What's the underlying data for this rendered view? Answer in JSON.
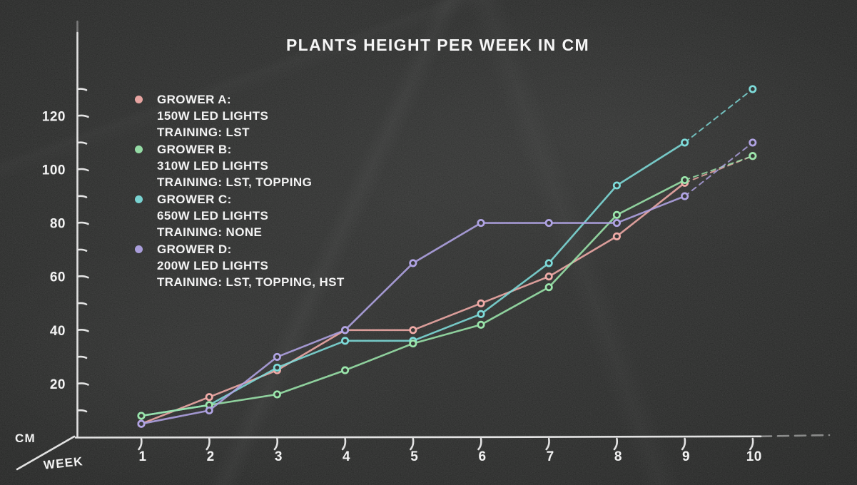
{
  "title": "PLANTS HEIGHT PER WEEK IN CM",
  "colors": {
    "background": "#1e1f1e",
    "chalk": "#f2f2f2",
    "grower_a": "#f0a29e",
    "grower_b": "#8fe3a2",
    "grower_c": "#6fd8d6",
    "grower_d": "#a89ae2"
  },
  "axes": {
    "y_unit_label": "CM",
    "x_unit_label": "WEEK"
  },
  "chart_data": {
    "type": "line",
    "title": "PLANTS HEIGHT PER WEEK IN CM",
    "xlabel": "WEEK",
    "ylabel": "CM",
    "x": [
      1,
      2,
      3,
      4,
      5,
      6,
      7,
      8,
      9,
      10
    ],
    "ylim": [
      0,
      135
    ],
    "y_ticks": [
      20,
      40,
      60,
      80,
      100,
      120
    ],
    "y_minor_ticks": [
      10,
      30,
      50,
      70,
      90,
      110,
      130
    ],
    "grid": false,
    "legend_position": "upper-left",
    "projection_segment": "weeks 9-10 drawn dashed",
    "series": [
      {
        "name": "GROWER A",
        "color": "#f0a29e",
        "legend": [
          "GROWER A:",
          "150W LED LIGHTS",
          "TRAINING: LST"
        ],
        "values": [
          5,
          15,
          25,
          40,
          40,
          50,
          60,
          75,
          95,
          105
        ]
      },
      {
        "name": "GROWER B",
        "color": "#8fe3a2",
        "legend": [
          "GROWER B:",
          "310W LED LIGHTS",
          "TRAINING: LST, TOPPING"
        ],
        "values": [
          8,
          12,
          16,
          25,
          35,
          42,
          56,
          83,
          96,
          105
        ]
      },
      {
        "name": "GROWER C",
        "color": "#6fd8d6",
        "legend": [
          "GROWER C:",
          "650W LED LIGHTS",
          "TRAINING: NONE"
        ],
        "values": [
          8,
          12,
          26,
          36,
          36,
          46,
          65,
          94,
          110,
          130
        ]
      },
      {
        "name": "GROWER D",
        "color": "#a89ae2",
        "legend": [
          "GROWER D:",
          "200W LED LIGHTS",
          "TRAINING: LST, TOPPING, HST"
        ],
        "values": [
          5,
          10,
          30,
          40,
          65,
          80,
          80,
          80,
          90,
          110
        ]
      }
    ]
  }
}
